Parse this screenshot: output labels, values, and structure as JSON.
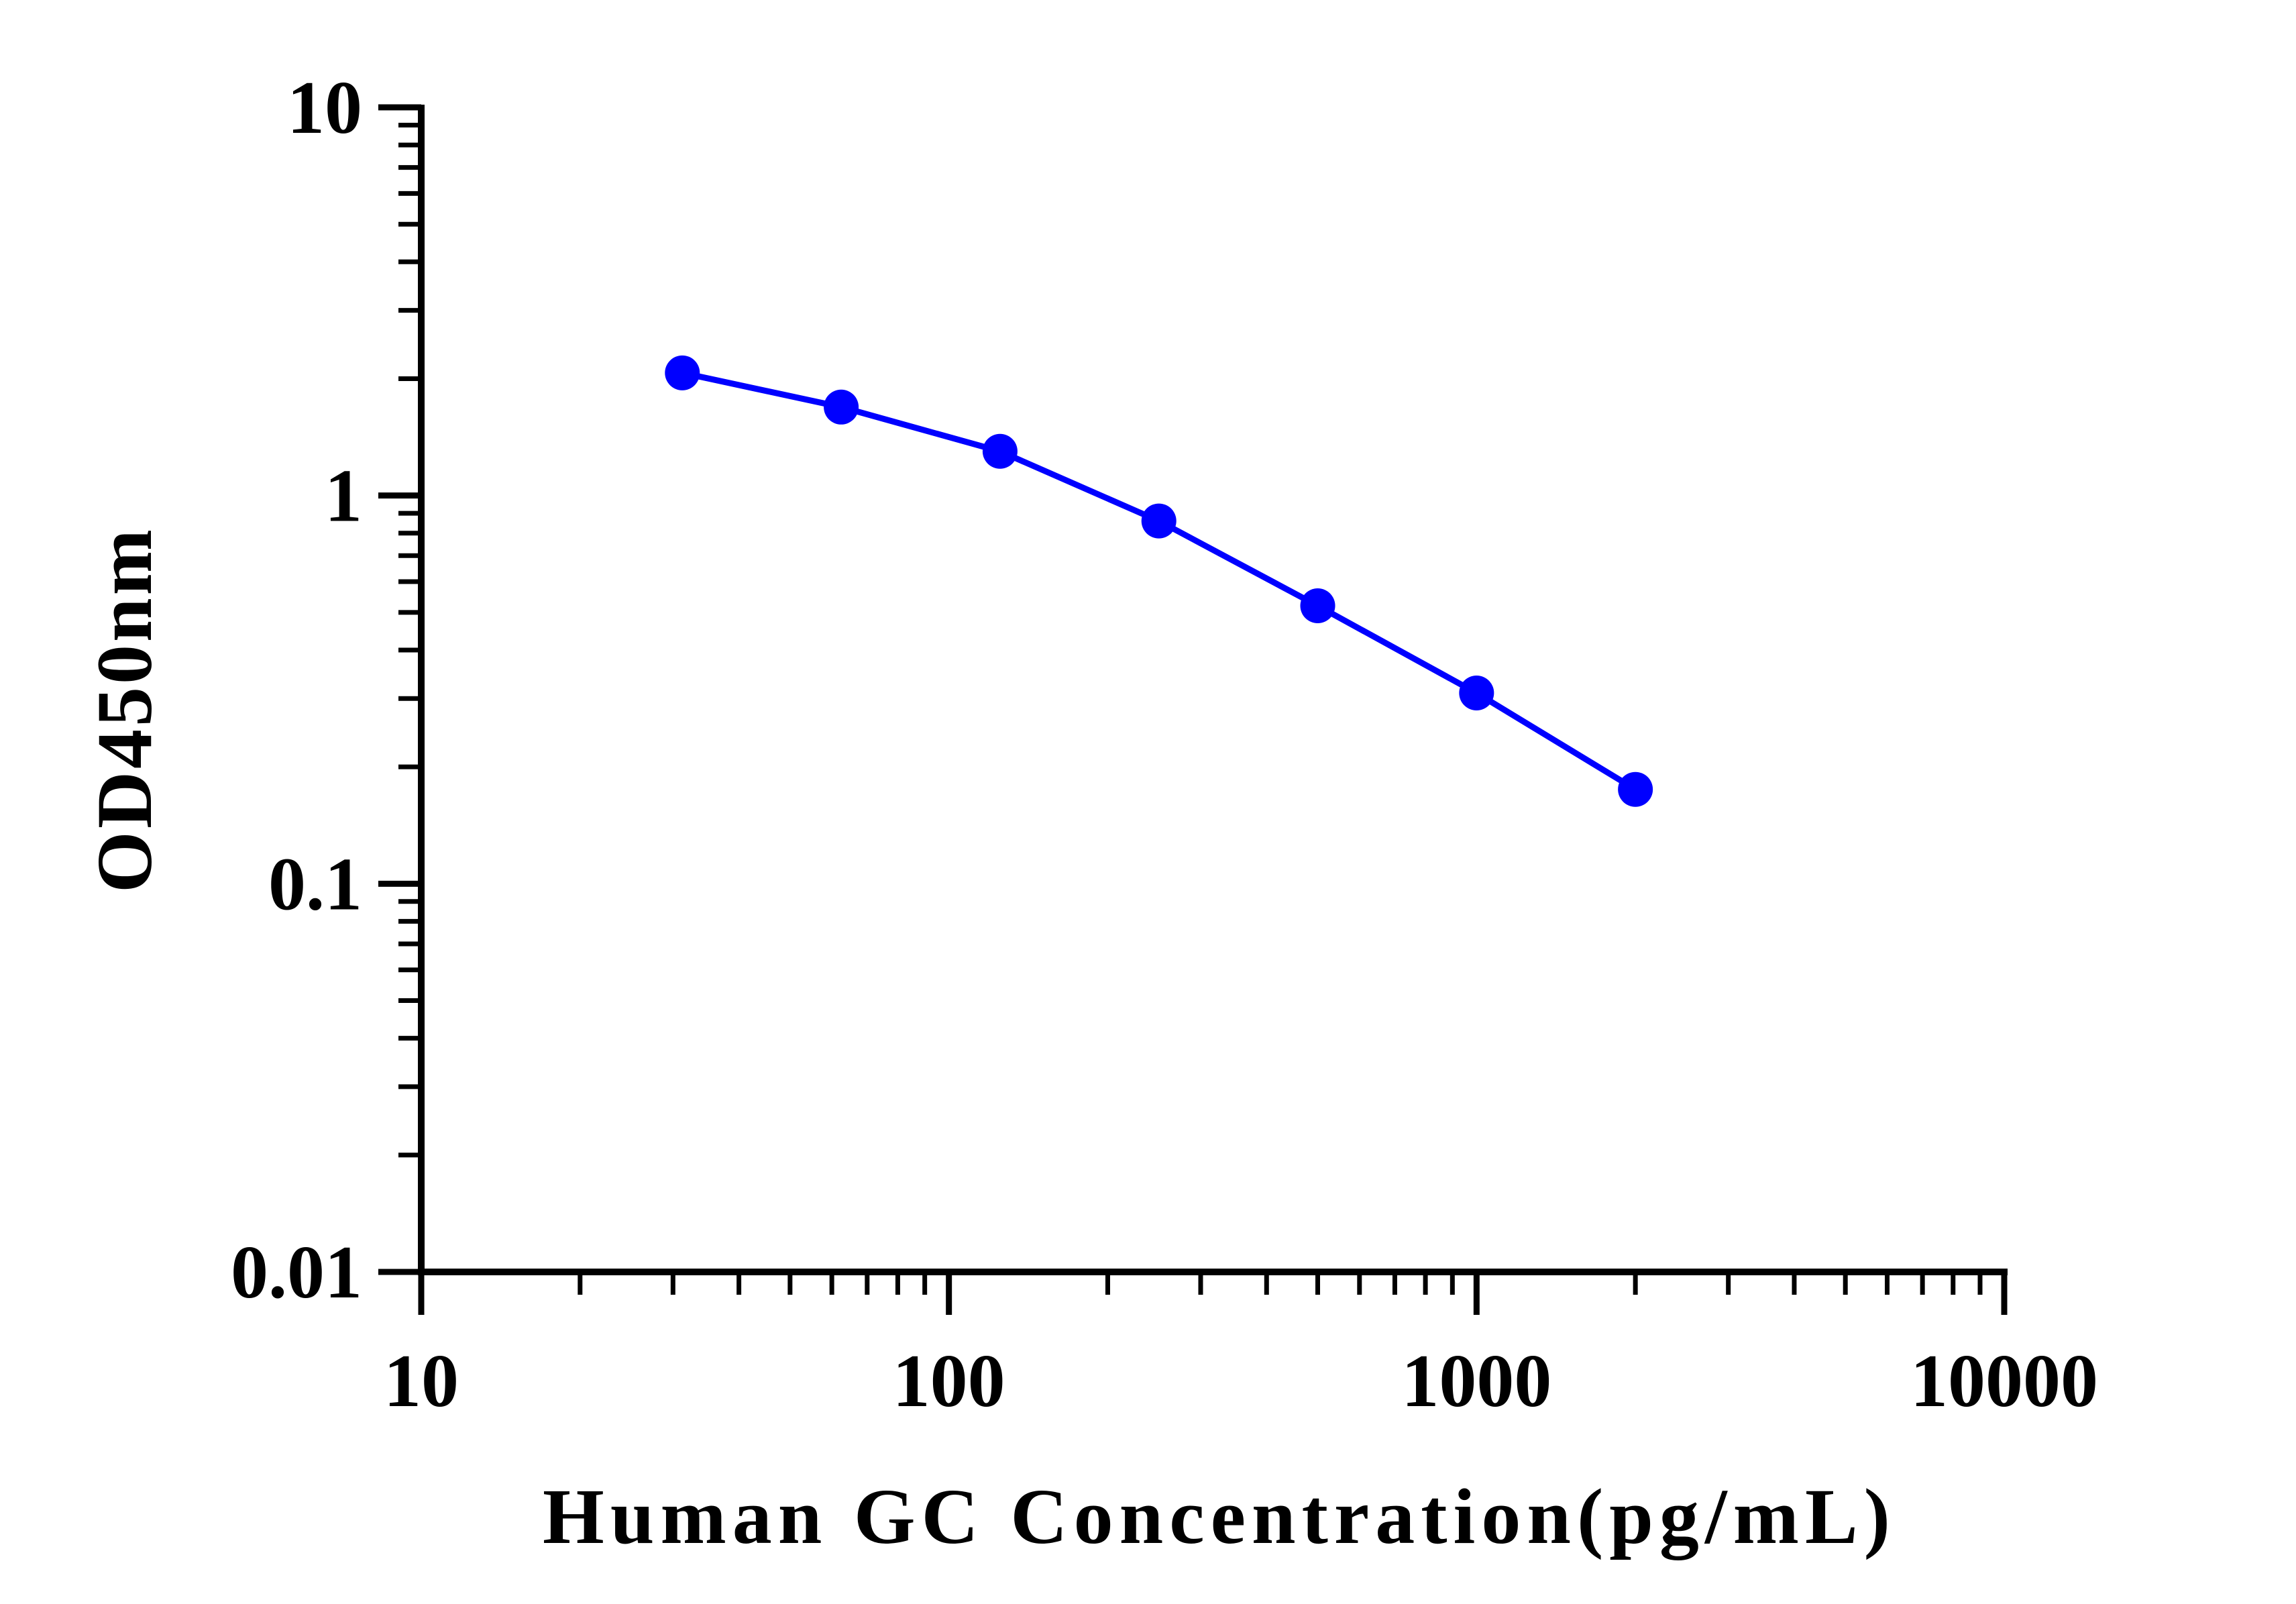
{
  "chart_data": {
    "type": "line",
    "xlabel": "Human GC Concentration(pg/mL)",
    "ylabel": "OD450nm",
    "xscale": "log",
    "yscale": "log",
    "xlim": [
      10,
      10000
    ],
    "ylim": [
      0.01,
      10
    ],
    "xticks": [
      "10",
      "100",
      "1000",
      "10000"
    ],
    "yticks": [
      "0.01",
      "0.1",
      "1",
      "10"
    ],
    "grid": false,
    "colors": {
      "series": "#0000ff",
      "axis": "#000000"
    },
    "series": [
      {
        "x": [
          31.25,
          62.5,
          125,
          250,
          500,
          1000,
          2000
        ],
        "y": [
          2.07,
          1.69,
          1.3,
          0.86,
          0.52,
          0.31,
          0.175
        ]
      }
    ]
  }
}
